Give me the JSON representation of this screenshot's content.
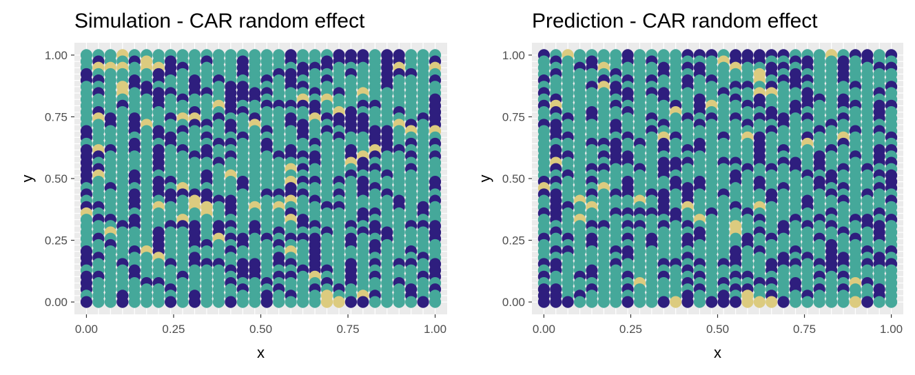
{
  "chart_data": [
    {
      "type": "scatter",
      "title": "Simulation - CAR random effect",
      "xlabel": "x",
      "ylabel": "y",
      "xlim": [
        -0.0345,
        1.0345
      ],
      "ylim": [
        -0.05,
        1.05
      ],
      "xticks": [
        0.0,
        0.25,
        0.5,
        0.75,
        1.0
      ],
      "xtick_labels": [
        "0.00",
        "0.25",
        "0.50",
        "0.75",
        "1.00"
      ],
      "yticks": [
        0.0,
        0.25,
        0.5,
        0.75,
        1.0
      ],
      "ytick_labels": [
        "0.00",
        "0.25",
        "0.50",
        "0.75",
        "1.00"
      ],
      "grid": true,
      "grid_x": [
        0.0,
        0.03448,
        0.06897,
        0.10345,
        0.13793,
        0.17241,
        0.2069,
        0.24138,
        0.27586,
        0.31034,
        0.34483,
        0.37931,
        0.41379,
        0.44828,
        0.48276,
        0.51724,
        0.55172,
        0.58621,
        0.62069,
        0.65517,
        0.68966,
        0.72414,
        0.75862,
        0.7931,
        0.82759,
        0.86207,
        0.89655,
        0.93103,
        0.96552,
        1.0
      ],
      "grid_y": [
        0.0,
        0.02564,
        0.05128,
        0.07692,
        0.10256,
        0.12821,
        0.15385,
        0.17949,
        0.20513,
        0.23077,
        0.25641,
        0.28205,
        0.30769,
        0.33333,
        0.35897,
        0.38462,
        0.41026,
        0.4359,
        0.46154,
        0.48718,
        0.51282,
        0.53846,
        0.5641,
        0.58974,
        0.61538,
        0.64103,
        0.66667,
        0.69231,
        0.71795,
        0.74359,
        0.76923,
        0.79487,
        0.82051,
        0.84615,
        0.87179,
        0.89744,
        0.92308,
        0.94872,
        0.97436,
        1.0
      ],
      "categories_note": "value class per point: 0 = dark purple, 1 = teal, 2 = sand",
      "palette": [
        "#2e1e7e",
        "#45a89a",
        "#dccb7f"
      ],
      "rows_top_to_bottom": [
        "111211111111111110111000100111",
        "101102101101101110110000100110",
        "122212200111101111000111102112",
        "011111001111101100011101100011",
        "001101011010111010110111101110",
        "111200111011001110011111101111",
        "101210001001000011101012111111",
        "111111010111000111212111111110",
        "111011011112011000001110011110",
        "101111111011001111101201110110",
        "120101102210110110120000111100",
        "110102111001012110011000112010",
        "011101010111011011010100001212",
        "011111001101101111011011001111",
        "111101101110011011101111001010",
        "020101010101111010111101200111",
        "001111011001011100001102011010",
        "011111011110111111101120111111",
        "001111011111111112011110011011",
        "021101111101211111111101101111",
        "011101001101101112001010111110",
        "110111012111101110111110011110",
        "011101000001111000011010101111",
        "111101101200011112101111110110",
        "001101211221012121110011110101",
        "211111111121011110111110011101",
        "100101112111111112011110111111",
        "111001100010010111001101011000",
        "112111011010110101110110001110",
        "101111011012001010001101101110",
        "110111011001101101101101011111",
        "011102011111011112101111011011",
        "001111211011111101101111111101",
        "011011101000100100101101010010",
        "111101111111000111000101111110",
        "001101110111100100121101011100",
        "011110011111011011110101110111",
        "011111101111101101101011111010",
        "111011111011111010112112011011",
        "011011101011011011112200111101"
      ]
    },
    {
      "type": "scatter",
      "title": "Prediction - CAR random effect",
      "xlabel": "x",
      "ylabel": "y",
      "xlim": [
        -0.0345,
        1.0345
      ],
      "ylim": [
        -0.05,
        1.05
      ],
      "xticks": [
        0.0,
        0.25,
        0.5,
        0.75,
        1.0
      ],
      "xtick_labels": [
        "0.00",
        "0.25",
        "0.50",
        "0.75",
        "1.00"
      ],
      "yticks": [
        0.0,
        0.25,
        0.5,
        0.75,
        1.0
      ],
      "ytick_labels": [
        "0.00",
        "0.25",
        "0.50",
        "0.75",
        "1.00"
      ],
      "grid": true,
      "grid_x": [
        0.0,
        0.03448,
        0.06897,
        0.10345,
        0.13793,
        0.17241,
        0.2069,
        0.24138,
        0.27586,
        0.31034,
        0.34483,
        0.37931,
        0.41379,
        0.44828,
        0.48276,
        0.51724,
        0.55172,
        0.58621,
        0.62069,
        0.65517,
        0.68966,
        0.72414,
        0.75862,
        0.7931,
        0.82759,
        0.86207,
        0.89655,
        0.93103,
        0.96552,
        1.0
      ],
      "grid_y": [
        0.0,
        0.02564,
        0.05128,
        0.07692,
        0.10256,
        0.12821,
        0.15385,
        0.17949,
        0.20513,
        0.23077,
        0.25641,
        0.28205,
        0.30769,
        0.33333,
        0.35897,
        0.38462,
        0.41026,
        0.4359,
        0.46154,
        0.48718,
        0.51282,
        0.53846,
        0.5641,
        0.58974,
        0.61538,
        0.64103,
        0.66667,
        0.69231,
        0.71795,
        0.74359,
        0.76923,
        0.79487,
        0.82051,
        0.84615,
        0.87179,
        0.89744,
        0.92308,
        0.94872,
        0.97436,
        1.0
      ],
      "categories_note": "value class per point: 0 = dark purple, 1 = teal, 2 = sand",
      "palette": [
        "#2e1e7e",
        "#45a89a",
        "#dccb7f"
      ],
      "rows_top_to_bottom": [
        "012111101111000100000111210010",
        "101101101011111200011001101011",
        "111002111101001121100101101100",
        "101111011101101111201011101111",
        "011110101011010111210001101111",
        "111102011111011100101011110110",
        "011111001001111011221101111101",
        "101111101101101101011100101111",
        "021111011110102110011001100100",
        "101101101112101111101011111101",
        "110101111011010101000101101101",
        "001111011101101110110111011111",
        "101111011011111111101110110101",
        "100111101120111012011101121110",
        "111100010101101111011121101111",
        "101111011101001111010111011100",
        "100110001111111111011110110101",
        "121111001100011001010010111100",
        "101100110100111110101010101011",
        "110111111101111101111101011100",
        "001101101110101101011110011110",
        "211112101110001111010110101100",
        "001101001001011011101111011011",
        "101211112101011111101101101110",
        "100121111101211101211101111111",
        "001111000000110110111111011101",
        "101211111110121111011010110010",
        "111100100101011121110101011001",
        "101111111111101121010111101101",
        "010101101011001110101110110101",
        "111101111011011110111111011111",
        "100111001111111101011011011010",
        "111111101111011101110101001101",
        "001111011100101001100010001000",
        "101101111111011111101111011111",
        "011001101101101100111110101111",
        "111111112111011011001011112011",
        "001101101111101100111010101101",
        "001011111111011012101101111101",
        "000111101102010002220111112011"
      ]
    }
  ]
}
